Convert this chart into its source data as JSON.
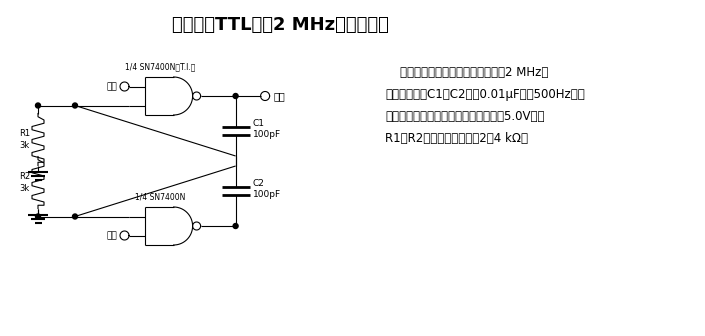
{
  "title": "使用两只TTL门的2 MHz方波发生器",
  "title_fontsize": 13,
  "desc_lines": [
    "    使用如图所示的数值，电路可产生2 MHz的",
    "对称方波。将C1和C2改为0.01μF可得500Hz的频",
    "率。对于特定的集成电路和电源电压（5.0V），",
    "R1与R2的可靠工作范围为2～4 kΩ。"
  ],
  "desc_fontsize": 8.5,
  "bg_color": "#ffffff",
  "line_color": "#000000",
  "gate1_label": "1/4 SN7400N（T.I.）",
  "gate2_label": "1/4 SN7400N",
  "cap1_label": "C1\n100pF",
  "cap2_label": "C2\n100pF",
  "r1_label": "R1\n3k",
  "r2_label": "R2\n3k",
  "out_label": "输出",
  "nc1_label": "空脚",
  "nc2_label": "空脚"
}
